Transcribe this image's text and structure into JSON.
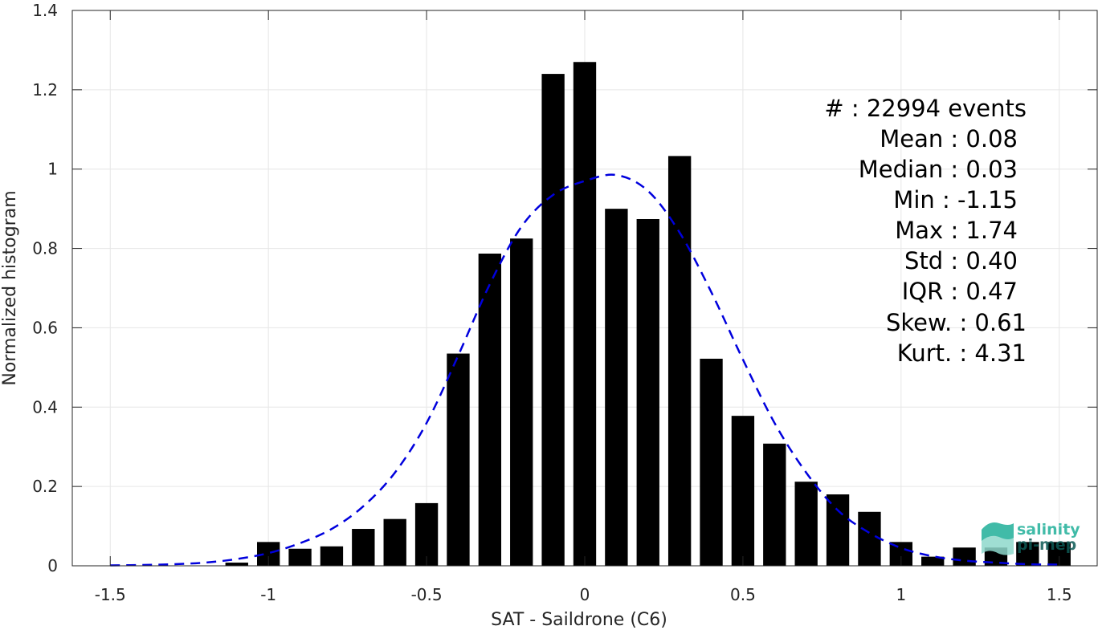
{
  "chart_data": {
    "type": "bar",
    "xlabel": "SAT - Saildrone (C6)",
    "ylabel": "Normalized histogram",
    "xlim": [
      -1.62,
      1.62
    ],
    "ylim": [
      0,
      1.4
    ],
    "xticks": [
      "-1.5",
      "-1",
      "-0.5",
      "0",
      "0.5",
      "1",
      "1.5"
    ],
    "yticks": [
      "0",
      "0.2",
      "0.4",
      "0.6",
      "0.8",
      "1",
      "1.2",
      "1.4"
    ],
    "grid": true,
    "bar_color": "#000000",
    "bars": {
      "x": [
        -1.1,
        -1.0,
        -0.9,
        -0.8,
        -0.7,
        -0.6,
        -0.5,
        -0.4,
        -0.3,
        -0.2,
        -0.1,
        0.0,
        0.1,
        0.2,
        0.3,
        0.4,
        0.5,
        0.6,
        0.7,
        0.8,
        0.9,
        1.0,
        1.1,
        1.2,
        1.3,
        1.4,
        1.5
      ],
      "values": [
        0.008,
        0.06,
        0.043,
        0.049,
        0.093,
        0.118,
        0.158,
        0.535,
        0.787,
        0.825,
        1.24,
        1.27,
        0.9,
        0.874,
        1.033,
        0.522,
        0.378,
        0.308,
        0.212,
        0.18,
        0.136,
        0.06,
        0.023,
        0.046,
        0.046,
        0.06,
        0.06
      ]
    },
    "fit_curve": {
      "style": "dashed",
      "color": "#0000dd",
      "x": [
        -1.5,
        -1.4,
        -1.3,
        -1.2,
        -1.1,
        -1.0,
        -0.9,
        -0.8,
        -0.7,
        -0.6,
        -0.5,
        -0.4,
        -0.3,
        -0.2,
        -0.1,
        0.0,
        0.1,
        0.2,
        0.3,
        0.4,
        0.5,
        0.6,
        0.7,
        0.8,
        0.9,
        1.0,
        1.1,
        1.2,
        1.3,
        1.4,
        1.5
      ],
      "y": [
        0.001,
        0.002,
        0.004,
        0.008,
        0.017,
        0.032,
        0.057,
        0.093,
        0.15,
        0.235,
        0.36,
        0.53,
        0.71,
        0.855,
        0.935,
        0.97,
        0.985,
        0.945,
        0.84,
        0.69,
        0.52,
        0.36,
        0.235,
        0.14,
        0.083,
        0.045,
        0.024,
        0.013,
        0.008,
        0.004,
        0.003
      ]
    }
  },
  "stats": [
    {
      "label": "#  : 22994 events"
    },
    {
      "label": "Mean : 0.08"
    },
    {
      "label": "Median : 0.03"
    },
    {
      "label": "Min : -1.15"
    },
    {
      "label": "Max : 1.74"
    },
    {
      "label": "Std : 0.40"
    },
    {
      "label": "IQR : 0.47"
    },
    {
      "label": "Skew. : 0.61"
    },
    {
      "label": "Kurt. : 4.31"
    }
  ],
  "logo": {
    "line1": "salinity",
    "line2": "pi-mep",
    "color1": "#20b09a",
    "color2": "#0d5a55"
  }
}
